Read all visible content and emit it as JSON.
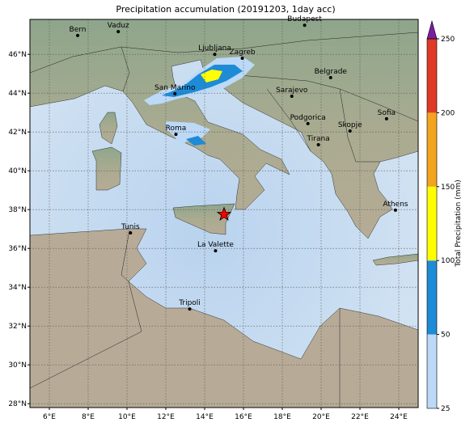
{
  "title": "Precipitation accumulation (20191203, 1day acc)",
  "map": {
    "xlim": [
      5,
      25
    ],
    "ylim": [
      27.8,
      47.8
    ],
    "grid": true,
    "xticks": [
      {
        "value": 6,
        "label": "6°E"
      },
      {
        "value": 8,
        "label": "8°E"
      },
      {
        "value": 10,
        "label": "10°E"
      },
      {
        "value": 12,
        "label": "12°E"
      },
      {
        "value": 14,
        "label": "14°E"
      },
      {
        "value": 16,
        "label": "16°E"
      },
      {
        "value": 18,
        "label": "18°E"
      },
      {
        "value": 20,
        "label": "20°E"
      },
      {
        "value": 22,
        "label": "22°E"
      },
      {
        "value": 24,
        "label": "24°E"
      }
    ],
    "yticks": [
      {
        "value": 28,
        "label": "28°N"
      },
      {
        "value": 30,
        "label": "30°N"
      },
      {
        "value": 32,
        "label": "32°N"
      },
      {
        "value": 34,
        "label": "34°N"
      },
      {
        "value": 36,
        "label": "36°N"
      },
      {
        "value": 38,
        "label": "38°N"
      },
      {
        "value": 40,
        "label": "40°N"
      },
      {
        "value": 42,
        "label": "42°N"
      },
      {
        "value": 44,
        "label": "44°N"
      },
      {
        "value": 46,
        "label": "46°N"
      }
    ]
  },
  "cities": [
    {
      "name": "Bern",
      "lon": 7.46,
      "lat": 46.97
    },
    {
      "name": "Vaduz",
      "lon": 9.55,
      "lat": 47.17
    },
    {
      "name": "Budapest",
      "lon": 19.15,
      "lat": 47.5
    },
    {
      "name": "Ljubljana",
      "lon": 14.52,
      "lat": 46.0
    },
    {
      "name": "Zagreb",
      "lon": 15.94,
      "lat": 45.8
    },
    {
      "name": "Belgrade",
      "lon": 20.49,
      "lat": 44.8
    },
    {
      "name": "San Marino",
      "lon": 12.47,
      "lat": 43.97
    },
    {
      "name": "Sarajevo",
      "lon": 18.49,
      "lat": 43.84
    },
    {
      "name": "Sofia",
      "lon": 23.37,
      "lat": 42.68
    },
    {
      "name": "Podgorica",
      "lon": 19.32,
      "lat": 42.43
    },
    {
      "name": "Skopje",
      "lon": 21.49,
      "lat": 42.05
    },
    {
      "name": "Roma",
      "lon": 12.52,
      "lat": 41.88
    },
    {
      "name": "Tirana",
      "lon": 19.86,
      "lat": 41.34
    },
    {
      "name": "Athens",
      "lon": 23.83,
      "lat": 37.97
    },
    {
      "name": "Tunis",
      "lon": 10.18,
      "lat": 36.8
    },
    {
      "name": "La Valette",
      "lon": 14.56,
      "lat": 35.88
    },
    {
      "name": "Tripoli",
      "lon": 13.23,
      "lat": 32.88
    }
  ],
  "marker": {
    "lon": 15.0,
    "lat": 37.75,
    "color": "#ff0000"
  },
  "colorbar": {
    "label": "Total Precipitation (mm)",
    "ticks": [
      25,
      50,
      100,
      150,
      200,
      250
    ],
    "colors": [
      "#bcd9f7",
      "#1e8bd6",
      "#ffff00",
      "#f3a41f",
      "#df3a26"
    ],
    "extend_color": "#7b1fa2"
  }
}
